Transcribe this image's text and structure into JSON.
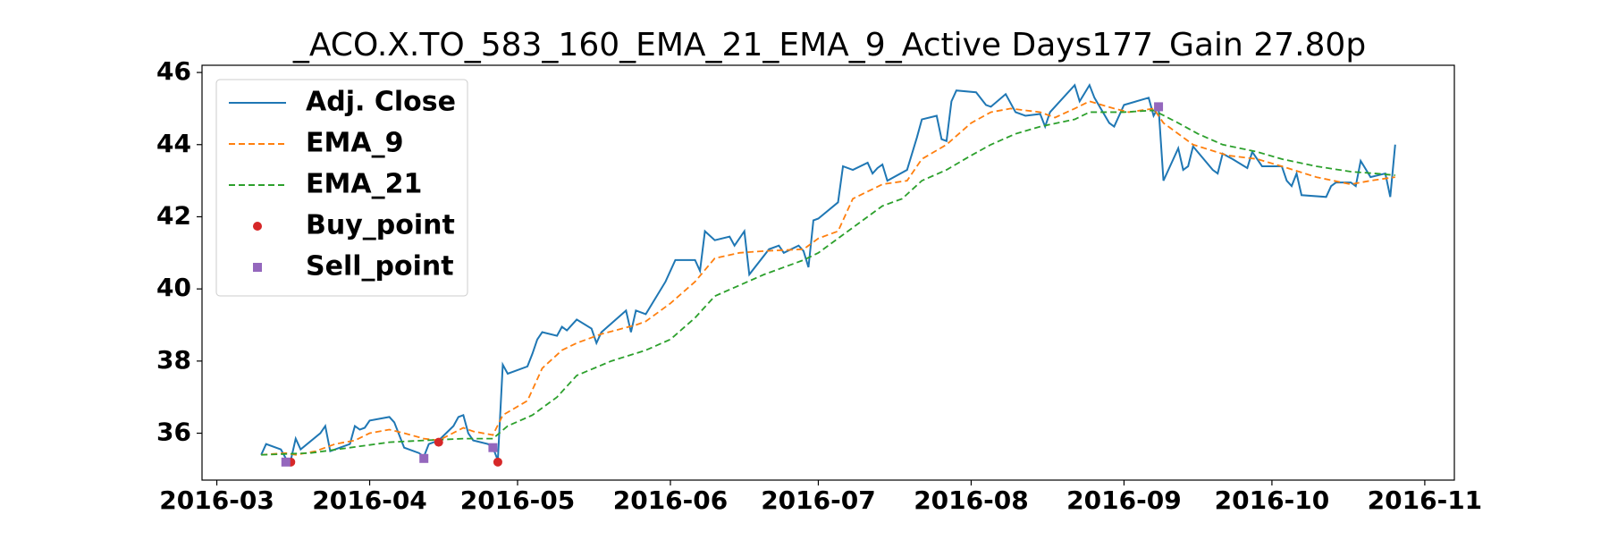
{
  "chart_data": {
    "type": "line",
    "title": "_ACO.X.TO_583_160_EMA_21_EMA_9_Active Days177_Gain  27.80p",
    "xlim": [
      "2016-02-27",
      "2016-11-07"
    ],
    "ylim": [
      34.7,
      46.2
    ],
    "xticks": [
      {
        "value": "2016-03-01",
        "label": "2016-03"
      },
      {
        "value": "2016-04-01",
        "label": "2016-04"
      },
      {
        "value": "2016-05-01",
        "label": "2016-05"
      },
      {
        "value": "2016-06-01",
        "label": "2016-06"
      },
      {
        "value": "2016-07-01",
        "label": "2016-07"
      },
      {
        "value": "2016-08-01",
        "label": "2016-08"
      },
      {
        "value": "2016-09-01",
        "label": "2016-09"
      },
      {
        "value": "2016-10-01",
        "label": "2016-10"
      },
      {
        "value": "2016-11-01",
        "label": "2016-11"
      }
    ],
    "yticks": [
      36,
      38,
      40,
      42,
      44,
      46
    ],
    "grid": false,
    "legend": "upper left",
    "series": [
      {
        "name": "Adj. Close",
        "color": "#1f77b4",
        "style": "solid",
        "x": [
          "2016-03-10",
          "2016-03-11",
          "2016-03-14",
          "2016-03-15",
          "2016-03-16",
          "2016-03-17",
          "2016-03-18",
          "2016-03-22",
          "2016-03-23",
          "2016-03-24",
          "2016-03-28",
          "2016-03-29",
          "2016-03-30",
          "2016-03-31",
          "2016-04-01",
          "2016-04-05",
          "2016-04-06",
          "2016-04-07",
          "2016-04-08",
          "2016-04-11",
          "2016-04-12",
          "2016-04-13",
          "2016-04-15",
          "2016-04-18",
          "2016-04-19",
          "2016-04-20",
          "2016-04-21",
          "2016-04-22",
          "2016-04-25",
          "2016-04-26",
          "2016-04-27",
          "2016-04-28",
          "2016-04-29",
          "2016-05-03",
          "2016-05-04",
          "2016-05-05",
          "2016-05-06",
          "2016-05-09",
          "2016-05-10",
          "2016-05-11",
          "2016-05-13",
          "2016-05-16",
          "2016-05-17",
          "2016-05-18",
          "2016-05-23",
          "2016-05-24",
          "2016-05-25",
          "2016-05-27",
          "2016-05-31",
          "2016-06-02",
          "2016-06-06",
          "2016-06-07",
          "2016-06-08",
          "2016-06-10",
          "2016-06-13",
          "2016-06-14",
          "2016-06-16",
          "2016-06-17",
          "2016-06-21",
          "2016-06-23",
          "2016-06-24",
          "2016-06-27",
          "2016-06-28",
          "2016-06-29",
          "2016-06-30",
          "2016-07-01",
          "2016-07-05",
          "2016-07-06",
          "2016-07-08",
          "2016-07-11",
          "2016-07-12",
          "2016-07-13",
          "2016-07-14",
          "2016-07-15",
          "2016-07-19",
          "2016-07-21",
          "2016-07-22",
          "2016-07-25",
          "2016-07-26",
          "2016-07-27",
          "2016-07-28",
          "2016-07-29",
          "2016-08-02",
          "2016-08-04",
          "2016-08-05",
          "2016-08-08",
          "2016-08-10",
          "2016-08-12",
          "2016-08-15",
          "2016-08-16",
          "2016-08-17",
          "2016-08-19",
          "2016-08-22",
          "2016-08-23",
          "2016-08-25",
          "2016-08-26",
          "2016-08-29",
          "2016-08-30",
          "2016-09-01",
          "2016-09-06",
          "2016-09-07",
          "2016-09-08",
          "2016-09-09",
          "2016-09-12",
          "2016-09-13",
          "2016-09-14",
          "2016-09-15",
          "2016-09-19",
          "2016-09-20",
          "2016-09-21",
          "2016-09-23",
          "2016-09-26",
          "2016-09-27",
          "2016-09-29",
          "2016-10-03",
          "2016-10-04",
          "2016-10-05",
          "2016-10-06",
          "2016-10-07",
          "2016-10-12",
          "2016-10-13",
          "2016-10-14",
          "2016-10-17",
          "2016-10-18",
          "2016-10-19",
          "2016-10-21",
          "2016-10-24",
          "2016-10-25",
          "2016-10-26"
        ],
        "values": [
          35.4,
          35.7,
          35.55,
          35.3,
          35.25,
          35.85,
          35.55,
          36.0,
          36.2,
          35.5,
          35.7,
          36.2,
          36.1,
          36.15,
          36.35,
          36.45,
          36.3,
          35.95,
          35.6,
          35.45,
          35.35,
          35.7,
          35.8,
          36.2,
          36.45,
          36.5,
          36.0,
          35.8,
          35.7,
          35.6,
          35.25,
          37.9,
          37.65,
          37.85,
          38.2,
          38.6,
          38.8,
          38.7,
          38.95,
          38.85,
          39.15,
          38.9,
          38.5,
          38.8,
          39.4,
          38.8,
          39.4,
          39.3,
          40.2,
          40.8,
          40.8,
          40.5,
          41.6,
          41.35,
          41.45,
          41.2,
          41.6,
          40.4,
          41.1,
          41.2,
          41.0,
          41.2,
          41.05,
          40.6,
          41.9,
          41.95,
          42.4,
          43.4,
          43.3,
          43.5,
          43.2,
          43.35,
          43.45,
          43.0,
          43.3,
          44.2,
          44.7,
          44.8,
          44.15,
          44.1,
          45.2,
          45.5,
          45.45,
          45.1,
          45.05,
          45.4,
          44.9,
          44.8,
          44.85,
          44.5,
          44.9,
          45.2,
          45.65,
          45.2,
          45.65,
          45.3,
          44.6,
          44.5,
          45.1,
          45.3,
          44.8,
          45.05,
          43.0,
          43.9,
          43.3,
          43.4,
          43.95,
          43.3,
          43.2,
          43.75,
          43.6,
          43.35,
          43.8,
          43.4,
          43.4,
          43.0,
          42.85,
          43.2,
          42.6,
          42.55,
          42.85,
          42.95,
          42.95,
          42.85,
          43.55,
          43.1,
          43.2,
          42.55,
          44.0
        ]
      },
      {
        "name": "EMA_9",
        "color": "#ff7f0e",
        "style": "dashed",
        "x": [
          "2016-03-10",
          "2016-03-15",
          "2016-03-17",
          "2016-03-21",
          "2016-03-25",
          "2016-03-29",
          "2016-04-01",
          "2016-04-05",
          "2016-04-08",
          "2016-04-12",
          "2016-04-15",
          "2016-04-20",
          "2016-04-22",
          "2016-04-26",
          "2016-04-28",
          "2016-05-03",
          "2016-05-06",
          "2016-05-10",
          "2016-05-13",
          "2016-05-18",
          "2016-05-25",
          "2016-05-27",
          "2016-06-01",
          "2016-06-06",
          "2016-06-10",
          "2016-06-15",
          "2016-06-20",
          "2016-06-28",
          "2016-07-01",
          "2016-07-05",
          "2016-07-08",
          "2016-07-14",
          "2016-07-19",
          "2016-07-22",
          "2016-07-27",
          "2016-08-01",
          "2016-08-05",
          "2016-08-09",
          "2016-08-15",
          "2016-08-18",
          "2016-08-22",
          "2016-08-25",
          "2016-08-30",
          "2016-09-02",
          "2016-09-07",
          "2016-09-09",
          "2016-09-15",
          "2016-09-22",
          "2016-09-28",
          "2016-10-03",
          "2016-10-10",
          "2016-10-17",
          "2016-10-21",
          "2016-10-26"
        ],
        "values": [
          35.4,
          35.45,
          35.4,
          35.5,
          35.7,
          35.8,
          36.0,
          36.1,
          36.0,
          35.85,
          35.8,
          36.15,
          36.05,
          35.95,
          36.5,
          36.9,
          37.8,
          38.3,
          38.5,
          38.75,
          39.0,
          39.1,
          39.6,
          40.2,
          40.85,
          41.0,
          41.05,
          41.1,
          41.4,
          41.6,
          42.5,
          42.9,
          43.0,
          43.6,
          44.0,
          44.6,
          44.9,
          45.0,
          44.9,
          44.75,
          45.0,
          45.2,
          45.0,
          44.9,
          45.0,
          44.6,
          44.0,
          43.7,
          43.6,
          43.4,
          43.1,
          42.9,
          43.0,
          43.1
        ]
      },
      {
        "name": "EMA_21",
        "color": "#2ca02c",
        "style": "dashed",
        "x": [
          "2016-03-10",
          "2016-03-20",
          "2016-03-28",
          "2016-04-05",
          "2016-04-12",
          "2016-04-20",
          "2016-04-26",
          "2016-04-29",
          "2016-05-04",
          "2016-05-09",
          "2016-05-13",
          "2016-05-20",
          "2016-05-27",
          "2016-06-01",
          "2016-06-06",
          "2016-06-10",
          "2016-06-15",
          "2016-06-20",
          "2016-06-24",
          "2016-06-28",
          "2016-07-01",
          "2016-07-06",
          "2016-07-10",
          "2016-07-14",
          "2016-07-18",
          "2016-07-22",
          "2016-07-27",
          "2016-08-01",
          "2016-08-05",
          "2016-08-10",
          "2016-08-15",
          "2016-08-22",
          "2016-08-25",
          "2016-09-01",
          "2016-09-07",
          "2016-09-12",
          "2016-09-16",
          "2016-09-21",
          "2016-09-28",
          "2016-10-03",
          "2016-10-10",
          "2016-10-17",
          "2016-10-22",
          "2016-10-26"
        ],
        "values": [
          35.4,
          35.45,
          35.6,
          35.75,
          35.8,
          35.85,
          35.85,
          36.2,
          36.5,
          37.0,
          37.6,
          38.0,
          38.3,
          38.6,
          39.2,
          39.8,
          40.1,
          40.4,
          40.6,
          40.8,
          41.0,
          41.5,
          41.9,
          42.3,
          42.5,
          43.0,
          43.3,
          43.7,
          44.0,
          44.3,
          44.5,
          44.7,
          44.9,
          44.9,
          44.95,
          44.6,
          44.3,
          44.0,
          43.8,
          43.6,
          43.4,
          43.25,
          43.2,
          43.15
        ]
      },
      {
        "name": "Buy_point",
        "color": "#d62728",
        "style": "circle",
        "x": [
          "2016-03-16",
          "2016-04-15",
          "2016-04-27"
        ],
        "values": [
          35.2,
          35.75,
          35.2
        ]
      },
      {
        "name": "Sell_point",
        "color": "#9467bd",
        "style": "square",
        "x": [
          "2016-03-15",
          "2016-04-12",
          "2016-04-26",
          "2016-09-08"
        ],
        "values": [
          35.2,
          35.3,
          35.6,
          45.05
        ]
      }
    ]
  }
}
